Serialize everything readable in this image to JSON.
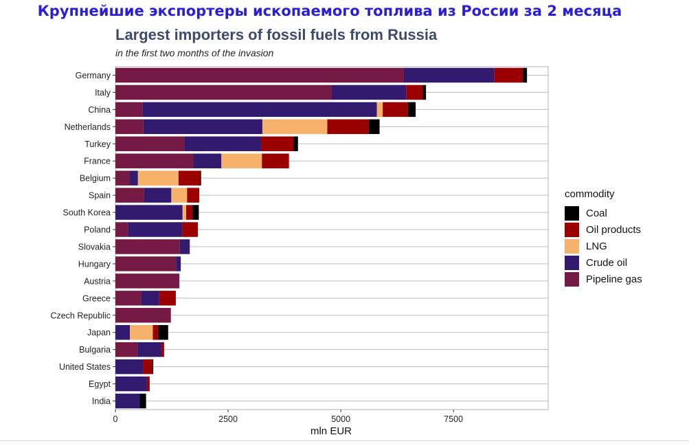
{
  "overlay_title": "Крупнейшие экспортеры ископаемого топлива из России за 2 месяца",
  "chart_data": {
    "type": "bar",
    "orientation": "horizontal",
    "stacked": true,
    "title": "Largest importers of fossil fuels from Russia",
    "subtitle": "in the first two months of the invasion",
    "xlabel": "mln EUR",
    "ylabel": "",
    "xlim": [
      0,
      9600
    ],
    "xticks": [
      0,
      2500,
      5000,
      7500
    ],
    "xtick_labels": [
      "0",
      "2500",
      "5000",
      "7500"
    ],
    "grid": "horizontal",
    "legend": {
      "title": "commodity",
      "position": "right"
    },
    "categories": [
      "Germany",
      "Italy",
      "China",
      "Netherlands",
      "Turkey",
      "France",
      "Belgium",
      "Spain",
      "South Korea",
      "Poland",
      "Slovakia",
      "Hungary",
      "Austria",
      "Greece",
      "Czech Republic",
      "Japan",
      "Bulgaria",
      "United States",
      "Egypt",
      "India"
    ],
    "stack_order": [
      "Pipeline gas",
      "Crude oil",
      "LNG",
      "Oil products",
      "Coal"
    ],
    "legend_order": [
      "Coal",
      "Oil products",
      "LNG",
      "Crude oil",
      "Pipeline gas"
    ],
    "colors": {
      "Coal": "#000000",
      "Oil products": "#9b0000",
      "LNG": "#f6b26b",
      "Crude oil": "#321a6e",
      "Pipeline gas": "#751a45"
    },
    "series": [
      {
        "name": "Pipeline gas",
        "values": [
          6400,
          4800,
          600,
          620,
          1530,
          1730,
          320,
          630,
          0,
          280,
          1430,
          1350,
          1420,
          570,
          1230,
          0,
          490,
          0,
          0,
          0
        ]
      },
      {
        "name": "Crude oil",
        "values": [
          2000,
          1650,
          5200,
          2640,
          1700,
          620,
          180,
          610,
          1490,
          1200,
          220,
          100,
          0,
          400,
          0,
          320,
          530,
          610,
          700,
          540
        ]
      },
      {
        "name": "LNG",
        "values": [
          0,
          0,
          130,
          1440,
          0,
          900,
          900,
          350,
          80,
          0,
          0,
          0,
          0,
          0,
          0,
          510,
          0,
          0,
          0,
          0
        ]
      },
      {
        "name": "Oil products",
        "values": [
          640,
          370,
          560,
          920,
          720,
          600,
          480,
          270,
          140,
          350,
          0,
          0,
          0,
          370,
          0,
          120,
          60,
          210,
          60,
          0
        ]
      },
      {
        "name": "Coal",
        "values": [
          90,
          70,
          170,
          240,
          100,
          0,
          20,
          0,
          140,
          0,
          0,
          0,
          0,
          0,
          0,
          220,
          0,
          20,
          0,
          140
        ]
      }
    ]
  }
}
